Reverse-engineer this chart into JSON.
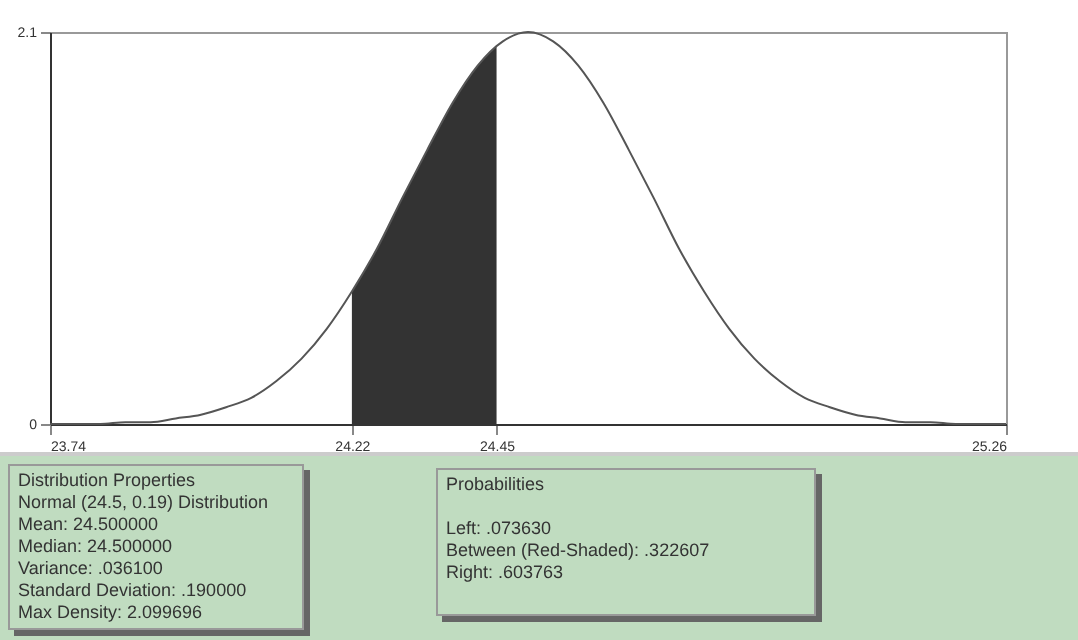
{
  "chart_data": {
    "type": "line",
    "series": [
      {
        "type": "area",
        "color": "#333333",
        "x": [
          24.22,
          24.26,
          24.3,
          24.34,
          24.38,
          24.42,
          24.45
        ],
        "values": [
          0.71,
          0.94,
          1.21,
          1.47,
          1.72,
          1.92,
          2.03
        ]
      },
      {
        "color": "#555555",
        "x": [
          23.74,
          23.78,
          23.82,
          23.86,
          23.9,
          23.94,
          23.98,
          24.02,
          24.06,
          24.1,
          24.14,
          24.18,
          24.22,
          24.26,
          24.3,
          24.34,
          24.38,
          24.42,
          24.46,
          24.5,
          24.54,
          24.58,
          24.62,
          24.66,
          24.7,
          24.74,
          24.78,
          24.82,
          24.86,
          24.9,
          24.94,
          24.98,
          25.02,
          25.06,
          25.1,
          25.14,
          25.18,
          25.22,
          25.26
        ],
        "values": [
          0.0,
          0.0,
          0.0,
          0.01,
          0.01,
          0.03,
          0.05,
          0.09,
          0.14,
          0.23,
          0.35,
          0.51,
          0.71,
          0.94,
          1.21,
          1.47,
          1.72,
          1.92,
          2.05,
          2.1,
          2.05,
          1.92,
          1.72,
          1.47,
          1.21,
          0.94,
          0.71,
          0.51,
          0.35,
          0.23,
          0.14,
          0.09,
          0.05,
          0.03,
          0.01,
          0.01,
          0.0,
          0.0,
          0.0
        ]
      }
    ],
    "xlim": [
      23.74,
      25.26
    ],
    "xticks": [
      23.74,
      24.22,
      24.45,
      25.26
    ],
    "ylim": [
      0,
      2.1
    ],
    "yticks": [
      0,
      2.1
    ],
    "grid": false,
    "annotations": [
      "Distribution Properties\nNormal (24.5, 0.19) Distribution\nMean: 24.500000\nMedian: 24.500000\nVariance: .036100\nStandard Deviation: .190000\nMax Density: 2.099696",
      "Probabilities\n\nLeft: .073630\nBetween (Red-Shaded): .322607\nRight: .603763"
    ]
  }
}
